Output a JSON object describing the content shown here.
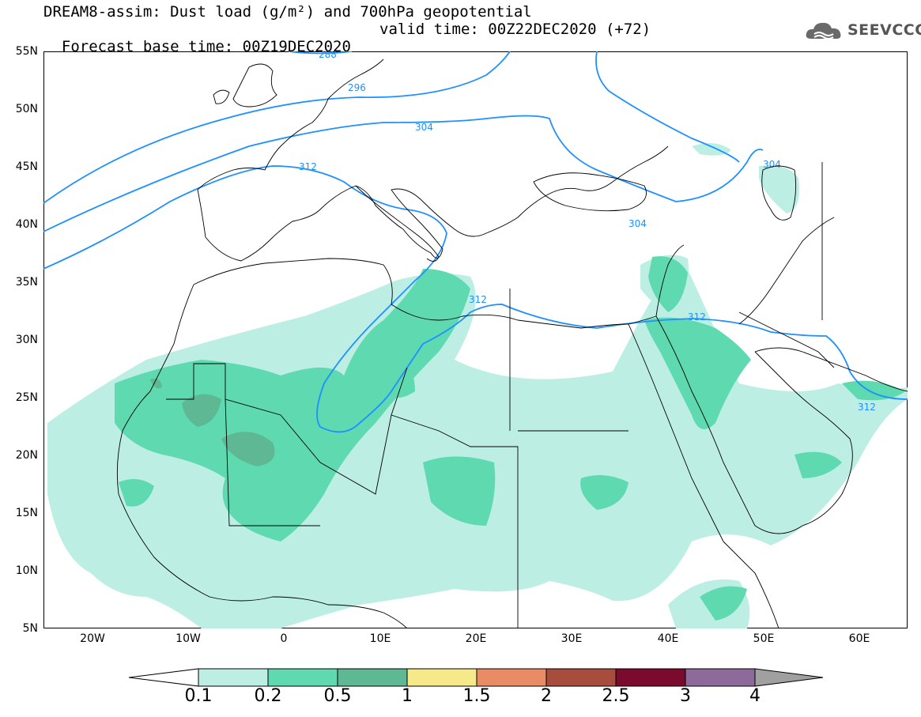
{
  "title": {
    "line1": "DREAM8-assim: Dust load (g/m²) and 700hPa geopotential",
    "line2_base": "Forecast base time: 00Z19DEC2020",
    "line2_valid": "valid time: 00Z22DEC2020 (+72)"
  },
  "logo": {
    "text": "SEEVCCC",
    "icon": "cloud-icon"
  },
  "map": {
    "lon_range": [
      -25,
      65
    ],
    "lat_range": [
      5,
      55
    ],
    "lat_ticks": [
      "55N",
      "50N",
      "45N",
      "40N",
      "35N",
      "30N",
      "25N",
      "20N",
      "15N",
      "10N",
      "5N"
    ],
    "lon_ticks": [
      "20W",
      "10W",
      "0",
      "10E",
      "20E",
      "30E",
      "40E",
      "50E",
      "60E"
    ],
    "contour_labels": [
      "288",
      "296",
      "304",
      "312",
      "304",
      "304",
      "312",
      "312",
      "312"
    ],
    "colors": {
      "contour": "#1e90ff",
      "dust_01": "#bdeee4",
      "dust_02": "#5ed9b0",
      "dust_05": "#5eb894"
    }
  },
  "colorbar": {
    "labels": [
      "0.1",
      "0.2",
      "0.5",
      "1",
      "1.5",
      "2",
      "2.5",
      "3",
      "4"
    ],
    "colors": [
      "#bdeee4",
      "#5ed9b0",
      "#5eb894",
      "#f5e98a",
      "#e98c66",
      "#a84c3e",
      "#7a0a2e",
      "#8c6a9a",
      "#a0a0a0"
    ]
  }
}
